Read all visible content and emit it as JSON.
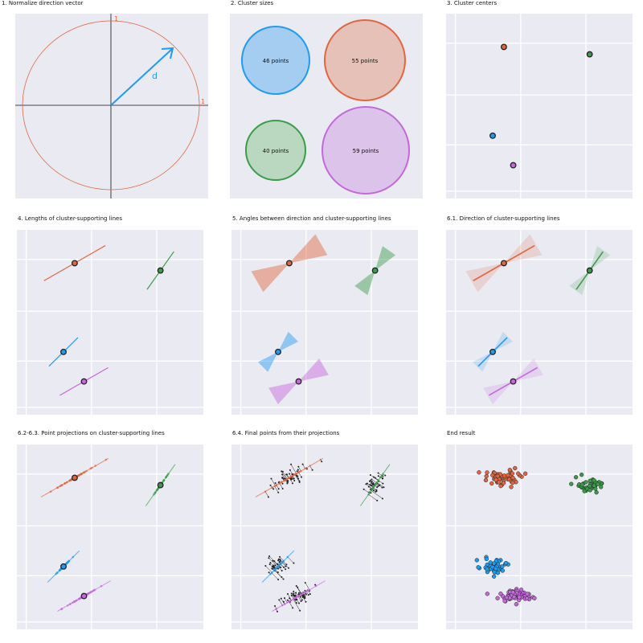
{
  "panels": [
    {
      "title": "1. Normalize direction vector"
    },
    {
      "title": "2. Cluster sizes"
    },
    {
      "title": "3. Cluster centers"
    },
    {
      "title": "4. Lengths of cluster-supporting lines"
    },
    {
      "title": "5. Angles between direction and cluster-supporting lines"
    },
    {
      "title": "6.1. Direction of cluster-supporting lines"
    },
    {
      "title": "6.2-6.3. Point projections on cluster-supporting lines"
    },
    {
      "title": "6.4. Final points from their projections"
    },
    {
      "title": "End result"
    }
  ],
  "unit_circle": {
    "radius_label_top": "1",
    "radius_label_right": "1",
    "vector_label": "d"
  },
  "clusters": [
    {
      "name": "blue",
      "color": "#1f9bef",
      "fill": "#a4cdf1",
      "size": 46,
      "size_label": "46 points",
      "center": [
        0.25,
        0.34
      ],
      "line_angle": 45,
      "line_length": 0.22,
      "proj_spread": 0.34
    },
    {
      "name": "orange",
      "color": "#e0663f",
      "fill": "#e5c1b8",
      "size": 55,
      "size_label": "55 points",
      "center": [
        0.31,
        0.82
      ],
      "line_angle": 30,
      "line_length": 0.38,
      "proj_spread": 0.6
    },
    {
      "name": "green",
      "color": "#3a9c48",
      "fill": "#b9d8bf",
      "size": 40,
      "size_label": "40 points",
      "center": [
        0.77,
        0.78
      ],
      "line_angle": 55,
      "line_length": 0.25,
      "proj_spread": 0.36
    },
    {
      "name": "purple",
      "color": "#c667dc",
      "fill": "#dcc3e9",
      "size": 59,
      "size_label": "59 points",
      "center": [
        0.36,
        0.18
      ],
      "line_angle": 30,
      "line_length": 0.3,
      "proj_spread": 0.5
    }
  ],
  "colors": {
    "panel_bg": "#eaeaf2",
    "grid": "#ffffff",
    "circle": "#e0663f",
    "vector": "#1f9bef",
    "axis": "#111111"
  }
}
